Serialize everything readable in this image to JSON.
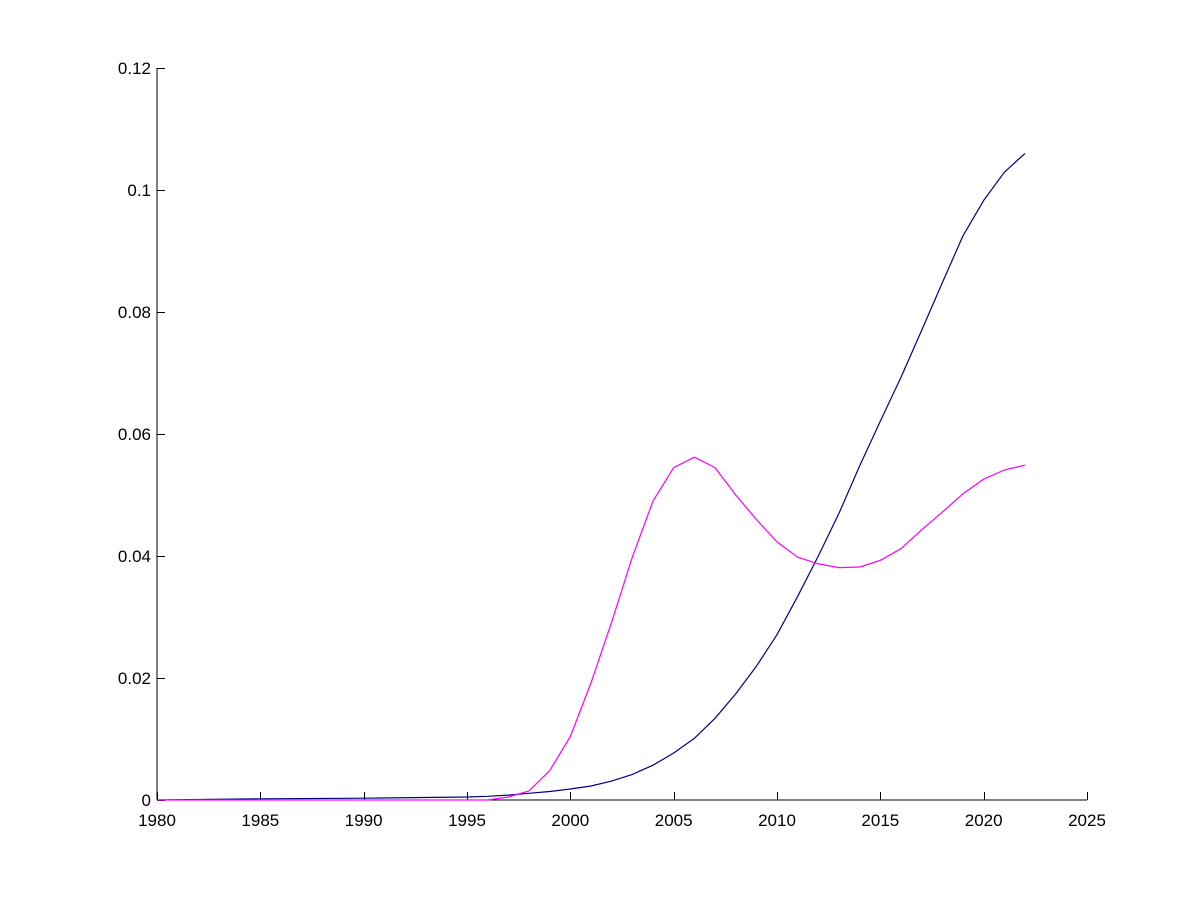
{
  "chart_data": {
    "type": "line",
    "title": "",
    "xlabel": "",
    "ylabel": "",
    "xlim": [
      1980,
      2025
    ],
    "ylim": [
      0,
      0.12
    ],
    "grid": false,
    "legend": "none",
    "x_ticks": [
      1980,
      1985,
      1990,
      1995,
      2000,
      2005,
      2010,
      2015,
      2020,
      2025
    ],
    "x_tick_labels": [
      "1980",
      "1985",
      "1990",
      "1995",
      "2000",
      "2005",
      "2010",
      "2015",
      "2020",
      "2025"
    ],
    "y_ticks": [
      0,
      0.02,
      0.04,
      0.06,
      0.08,
      0.1,
      0.12
    ],
    "y_tick_labels": [
      "0",
      "0.02",
      "0.04",
      "0.06",
      "0.08",
      "0.1",
      "0.12"
    ],
    "series": [
      {
        "color": "#00008b",
        "x": [
          1980,
          1985,
          1990,
          1995,
          1996,
          1997,
          1998,
          1999,
          2000,
          2001,
          2002,
          2003,
          2004,
          2005,
          2006,
          2007,
          2008,
          2009,
          2010,
          2011,
          2012,
          2013,
          2014,
          2015,
          2016,
          2017,
          2018,
          2019,
          2020,
          2021,
          2022
        ],
        "y": [
          0.0,
          0.0002,
          0.0003,
          0.0005,
          0.0006,
          0.0008,
          0.0011,
          0.0014,
          0.0018,
          0.0023,
          0.0031,
          0.0042,
          0.0057,
          0.0077,
          0.0101,
          0.0134,
          0.0174,
          0.0219,
          0.0271,
          0.0334,
          0.04,
          0.047,
          0.0548,
          0.0621,
          0.0693,
          0.077,
          0.0848,
          0.0925,
          0.0983,
          0.1029,
          0.106
        ]
      },
      {
        "color": "#ff00ff",
        "x": [
          1980,
          1990,
          1996,
          1997,
          1998,
          1999,
          2000,
          2001,
          2002,
          2003,
          2004,
          2005,
          2006,
          2007,
          2008,
          2009,
          2010,
          2011,
          2012,
          2013,
          2014,
          2015,
          2016,
          2017,
          2018,
          2019,
          2020,
          2021,
          2022
        ],
        "y": [
          0.0,
          0.0,
          0.0,
          0.0005,
          0.0015,
          0.0048,
          0.0104,
          0.0192,
          0.0292,
          0.0398,
          0.049,
          0.0545,
          0.0562,
          0.0545,
          0.05,
          0.046,
          0.0423,
          0.0398,
          0.0387,
          0.0381,
          0.0382,
          0.0393,
          0.0412,
          0.0443,
          0.0472,
          0.0502,
          0.0526,
          0.0541,
          0.0549
        ]
      }
    ]
  }
}
